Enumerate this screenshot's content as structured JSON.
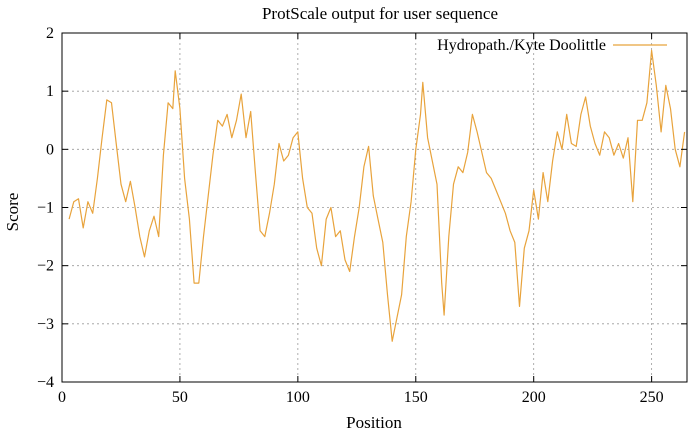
{
  "chart_data": {
    "type": "line",
    "title": "ProtScale output for user sequence",
    "xlabel": "Position",
    "ylabel": "Score",
    "xlim": [
      0,
      265
    ],
    "ylim": [
      -4,
      2
    ],
    "xticks": [
      0,
      50,
      100,
      150,
      200,
      250
    ],
    "yticks": [
      -4,
      -3,
      -2,
      -1,
      0,
      1,
      2
    ],
    "xtick_labels": [
      "0",
      "50",
      "100",
      "150",
      "200",
      "250"
    ],
    "ytick_labels": [
      "−4",
      "−3",
      "−2",
      "−1",
      "0",
      "1",
      "2"
    ],
    "grid": true,
    "legend_position": "top-right",
    "series": [
      {
        "name": "Hydropath./Kyte Doolittle",
        "color": "#e8a33c",
        "points": [
          [
            3,
            -1.2
          ],
          [
            5,
            -0.9
          ],
          [
            7,
            -0.85
          ],
          [
            9,
            -1.35
          ],
          [
            11,
            -0.9
          ],
          [
            13,
            -1.1
          ],
          [
            15,
            -0.5
          ],
          [
            17,
            0.2
          ],
          [
            19,
            0.85
          ],
          [
            21,
            0.8
          ],
          [
            23,
            0.1
          ],
          [
            25,
            -0.6
          ],
          [
            27,
            -0.9
          ],
          [
            29,
            -0.55
          ],
          [
            31,
            -1.0
          ],
          [
            33,
            -1.5
          ],
          [
            35,
            -1.85
          ],
          [
            37,
            -1.4
          ],
          [
            39,
            -1.15
          ],
          [
            41,
            -1.5
          ],
          [
            43,
            -0.1
          ],
          [
            45,
            0.8
          ],
          [
            47,
            0.7
          ],
          [
            48,
            1.35
          ],
          [
            50,
            0.7
          ],
          [
            52,
            -0.5
          ],
          [
            54,
            -1.2
          ],
          [
            56,
            -2.3
          ],
          [
            58,
            -2.3
          ],
          [
            60,
            -1.5
          ],
          [
            62,
            -0.8
          ],
          [
            64,
            -0.1
          ],
          [
            66,
            0.5
          ],
          [
            68,
            0.4
          ],
          [
            70,
            0.6
          ],
          [
            72,
            0.2
          ],
          [
            74,
            0.5
          ],
          [
            76,
            0.95
          ],
          [
            78,
            0.2
          ],
          [
            80,
            0.65
          ],
          [
            82,
            -0.4
          ],
          [
            84,
            -1.4
          ],
          [
            86,
            -1.5
          ],
          [
            88,
            -1.1
          ],
          [
            90,
            -0.6
          ],
          [
            92,
            0.1
          ],
          [
            94,
            -0.2
          ],
          [
            96,
            -0.1
          ],
          [
            98,
            0.2
          ],
          [
            100,
            0.3
          ],
          [
            102,
            -0.5
          ],
          [
            104,
            -1.0
          ],
          [
            106,
            -1.1
          ],
          [
            108,
            -1.7
          ],
          [
            110,
            -2.0
          ],
          [
            112,
            -1.2
          ],
          [
            114,
            -1.0
          ],
          [
            116,
            -1.5
          ],
          [
            118,
            -1.4
          ],
          [
            120,
            -1.9
          ],
          [
            122,
            -2.1
          ],
          [
            124,
            -1.5
          ],
          [
            126,
            -1.0
          ],
          [
            128,
            -0.3
          ],
          [
            130,
            0.05
          ],
          [
            132,
            -0.8
          ],
          [
            134,
            -1.2
          ],
          [
            136,
            -1.6
          ],
          [
            138,
            -2.5
          ],
          [
            140,
            -3.3
          ],
          [
            142,
            -2.9
          ],
          [
            144,
            -2.5
          ],
          [
            146,
            -1.5
          ],
          [
            148,
            -0.9
          ],
          [
            150,
            0.0
          ],
          [
            152,
            0.6
          ],
          [
            153,
            1.15
          ],
          [
            155,
            0.2
          ],
          [
            157,
            -0.2
          ],
          [
            159,
            -0.6
          ],
          [
            161,
            -2.3
          ],
          [
            162,
            -2.85
          ],
          [
            164,
            -1.5
          ],
          [
            166,
            -0.6
          ],
          [
            168,
            -0.3
          ],
          [
            170,
            -0.4
          ],
          [
            172,
            -0.05
          ],
          [
            174,
            0.6
          ],
          [
            176,
            0.3
          ],
          [
            178,
            -0.05
          ],
          [
            180,
            -0.4
          ],
          [
            182,
            -0.5
          ],
          [
            184,
            -0.7
          ],
          [
            186,
            -0.9
          ],
          [
            188,
            -1.1
          ],
          [
            190,
            -1.4
          ],
          [
            192,
            -1.6
          ],
          [
            194,
            -2.7
          ],
          [
            196,
            -1.7
          ],
          [
            198,
            -1.4
          ],
          [
            200,
            -0.7
          ],
          [
            202,
            -1.2
          ],
          [
            204,
            -0.4
          ],
          [
            206,
            -0.9
          ],
          [
            208,
            -0.2
          ],
          [
            210,
            0.3
          ],
          [
            212,
            0.0
          ],
          [
            214,
            0.6
          ],
          [
            216,
            0.1
          ],
          [
            218,
            0.05
          ],
          [
            220,
            0.6
          ],
          [
            222,
            0.9
          ],
          [
            224,
            0.4
          ],
          [
            226,
            0.1
          ],
          [
            228,
            -0.1
          ],
          [
            230,
            0.3
          ],
          [
            232,
            0.2
          ],
          [
            234,
            -0.1
          ],
          [
            236,
            0.1
          ],
          [
            238,
            -0.15
          ],
          [
            240,
            0.2
          ],
          [
            242,
            -0.9
          ],
          [
            244,
            0.5
          ],
          [
            246,
            0.5
          ],
          [
            248,
            0.8
          ],
          [
            250,
            1.7
          ],
          [
            252,
            1.1
          ],
          [
            254,
            0.3
          ],
          [
            256,
            1.1
          ],
          [
            258,
            0.7
          ],
          [
            260,
            0.0
          ],
          [
            262,
            -0.3
          ],
          [
            264,
            0.3
          ]
        ]
      }
    ]
  }
}
